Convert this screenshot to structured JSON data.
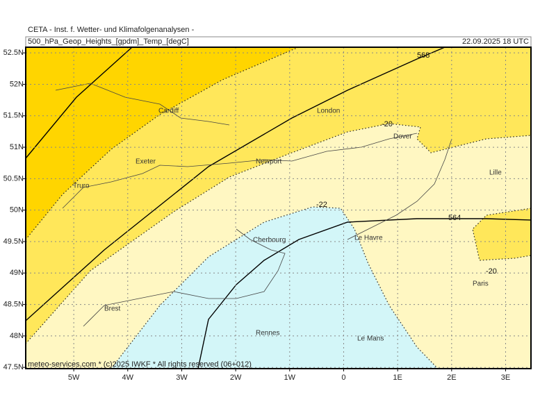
{
  "header": {
    "institute": "CETA - Inst. f. Wetter- und Klimafolgenanalysen -",
    "title": "500_hPa_Geop_Heights_[gpdm]_Temp_[degC]",
    "datetime": "22.09.2025 18 UTC"
  },
  "map": {
    "lonlim": [
      -5.89,
      3.47
    ],
    "latlim": [
      47.48,
      52.59
    ],
    "lat_ticks": [
      {
        "value": 47.5,
        "label": "47.5N"
      },
      {
        "value": 48,
        "label": "48N"
      },
      {
        "value": 48.5,
        "label": "48.5N"
      },
      {
        "value": 49,
        "label": "49N"
      },
      {
        "value": 49.5,
        "label": "49.5N"
      },
      {
        "value": 50,
        "label": "50N"
      },
      {
        "value": 50.5,
        "label": "50.5N"
      },
      {
        "value": 51,
        "label": "51N"
      },
      {
        "value": 51.5,
        "label": "51.5N"
      },
      {
        "value": 52,
        "label": "52N"
      },
      {
        "value": 52.5,
        "label": "52.5N"
      }
    ],
    "lon_ticks": [
      {
        "value": -5,
        "label": "5W"
      },
      {
        "value": -4,
        "label": "4W"
      },
      {
        "value": -3,
        "label": "3W"
      },
      {
        "value": -2,
        "label": "2W"
      },
      {
        "value": -1,
        "label": "1W"
      },
      0,
      {
        "value": 1,
        "label": "1E"
      },
      {
        "value": 2,
        "label": "2E"
      },
      {
        "value": 3,
        "label": "3E"
      }
    ],
    "cities": [
      "Cardiff",
      "London",
      "Dover",
      "Exeter",
      "Newport",
      "Truro",
      "Lille",
      "Cherbourg",
      "Le Havre",
      "Paris",
      "Brest",
      "Rennes",
      "Le Mans"
    ],
    "contour_labels": [
      "568",
      "-20",
      "-22",
      "564",
      "-20"
    ]
  },
  "footer": "meteo-services.com * (c)2025 IWKF * All rights reserved (06+012)"
}
